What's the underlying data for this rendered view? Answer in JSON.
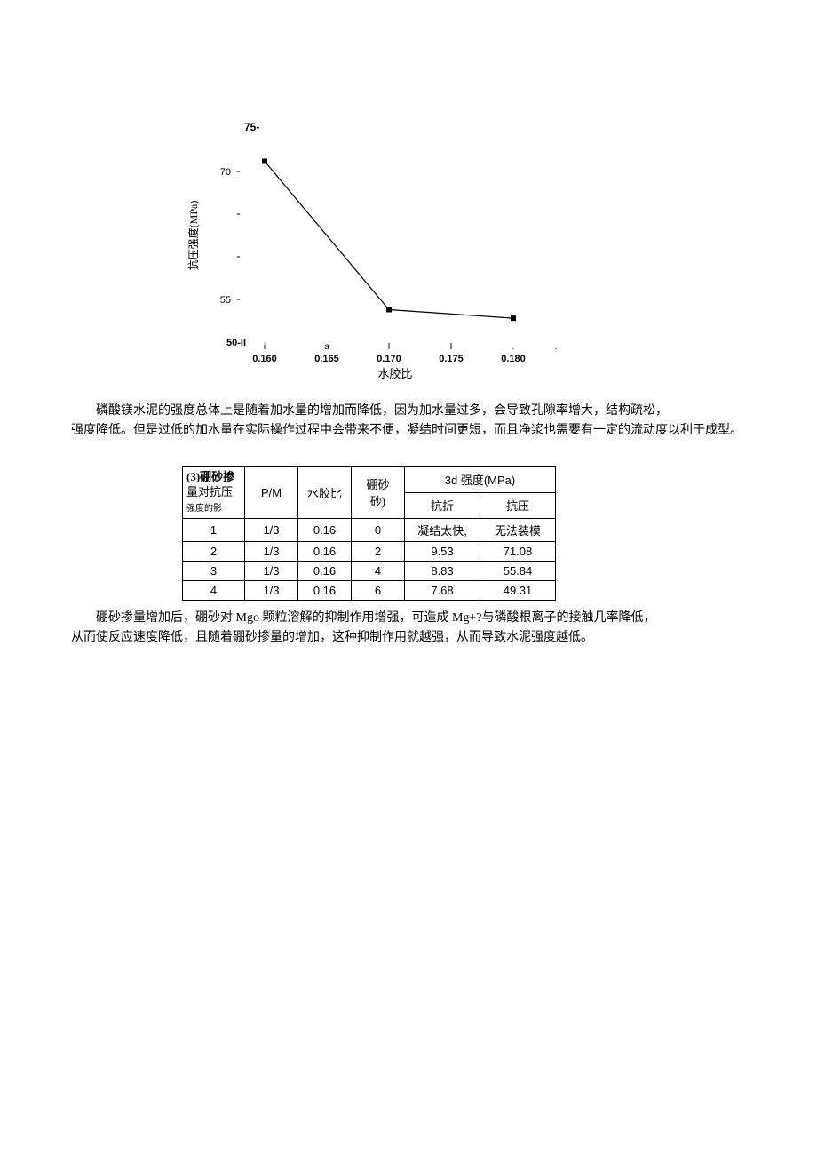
{
  "chart": {
    "type": "line",
    "ylabel": "抗压强度(MPa)",
    "xlabel": "水胶比",
    "ylabel_fontsize": 12,
    "xlabel_fontsize": 13,
    "tick_fontsize": 11,
    "y_title": "75-",
    "y_title_fontweight": "bold",
    "xlim": [
      0.158,
      0.183
    ],
    "ylim": [
      50,
      75
    ],
    "yticks": [
      50,
      55,
      70,
      75
    ],
    "ytick_labels": [
      "50-II",
      "55",
      "70",
      "75-"
    ],
    "xticks": [
      0.16,
      0.165,
      0.17,
      0.175,
      0.18
    ],
    "xtick_labels": [
      "0.160",
      "0.165",
      "0.170",
      "0.175",
      "0.180"
    ],
    "xmark_labels": [
      "I",
      "i",
      "a",
      "I",
      "I",
      "."
    ],
    "x_points": [
      0.16,
      0.17,
      0.18
    ],
    "y_points": [
      71.2,
      53.8,
      52.8
    ],
    "marker": "square",
    "marker_size": 6,
    "marker_color": "#000000",
    "line_color": "#000000",
    "line_width": 1.2,
    "axis_color": "#000000",
    "background_color": "#ffffff"
  },
  "para1": "磷酸镁水泥的强度总体上是随着加水量的增加而降低，因为加水量过多，会导致孔隙率增大，结构疏松，",
  "para2": "强度降低。但是过低的加水量在实际操作过程中会带来不便，凝结时间更短，而且净浆也需要有一定的流动度以利于成型。",
  "table": {
    "corner_label_line1": "(3)硼砂掺",
    "corner_label_line2": "量对抗压",
    "corner_label_line3": "强度的影",
    "columns": [
      "P/M",
      "水胶比",
      "硼砂砂)",
      "3d 强度(MPa)"
    ],
    "sub_columns": [
      "抗折",
      "抗压"
    ],
    "rows": [
      [
        "1",
        "1/3",
        "0.16",
        "0",
        "凝结太快,",
        "无法装模"
      ],
      [
        "2",
        "1/3",
        "0.16",
        "2",
        "9.53",
        "71.08"
      ],
      [
        "3",
        "1/3",
        "0.16",
        "4",
        "8.83",
        "55.84"
      ],
      [
        "4",
        "1/3",
        "0.16",
        "6",
        "7.68",
        "49.31"
      ]
    ]
  },
  "para3": "硼砂掺量增加后，硼砂对 Mgo 颗粒溶解的抑制作用增强，可造成 Mg+?与磷酸根离子的接触几率降低，",
  "para4": "从而使反应速度降低，且随着硼砂掺量的增加，这种抑制作用就越强，从而导致水泥强度越低。"
}
